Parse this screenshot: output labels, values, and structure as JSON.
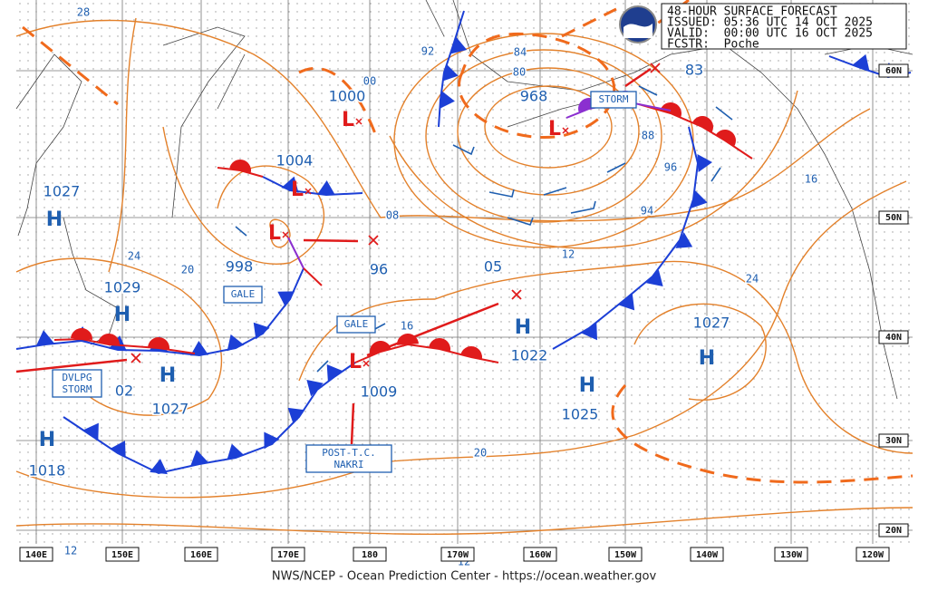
{
  "header": {
    "lines": [
      "48-HOUR SURFACE FORECAST",
      "ISSUED: 05:36 UTC 14 OCT 2025",
      "VALID:  00:00 UTC 16 OCT 2025",
      "FCSTR:  Poche"
    ]
  },
  "footer": "NWS/NCEP - Ocean Prediction Center - https://ocean.weather.gov",
  "longitudes": [
    "140E",
    "150E",
    "160E",
    "170E",
    "180",
    "170W",
    "160W",
    "150W",
    "140W",
    "130W",
    "120W"
  ],
  "latitudes": [
    "60N",
    "50N",
    "40N",
    "30N",
    "20N"
  ],
  "systems": [
    {
      "symbol": "H",
      "pressure": "1027"
    },
    {
      "symbol": "H",
      "pressure": "1029"
    },
    {
      "symbol": "H",
      "pressure": "1027"
    },
    {
      "pressure": "02"
    },
    {
      "symbol": "H",
      "pressure": "1018"
    },
    {
      "symbol": "L",
      "pressure": "1000"
    },
    {
      "symbol": "L",
      "pressure": "1004"
    },
    {
      "symbol": "L",
      "pressure": "998"
    },
    {
      "pressure": "96"
    },
    {
      "symbol": "L",
      "pressure": "968"
    },
    {
      "symbol": "L",
      "pressure": "1009"
    },
    {
      "pressure": "05"
    },
    {
      "symbol": "H",
      "pressure": "1022"
    },
    {
      "symbol": "H",
      "pressure": "1027"
    },
    {
      "symbol": "H",
      "pressure": "1025"
    },
    {
      "pressure": "83"
    }
  ],
  "isobar_labels": [
    "28",
    "92",
    "84",
    "80",
    "00",
    "88",
    "96",
    "16",
    "08",
    "94",
    "12",
    "24",
    "20",
    "24",
    "16",
    "20",
    "12",
    "12"
  ],
  "warnings": [
    [
      "STORM"
    ],
    [
      "GALE"
    ],
    [
      "GALE"
    ],
    [
      "DVLPG",
      "STORM"
    ],
    [
      "POST-T.C.",
      "NAKRI"
    ]
  ]
}
